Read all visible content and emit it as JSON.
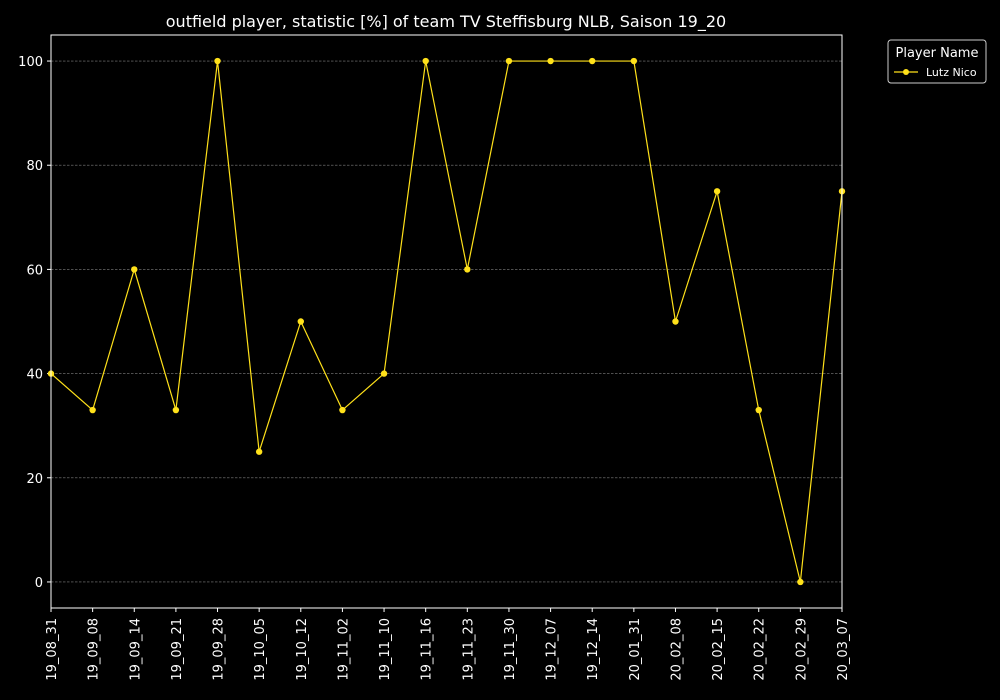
{
  "chart_data": {
    "type": "line",
    "title": "outfield player, statistic [%] of team TV Steffisburg NLB, Saison 19_20",
    "xlabel": "",
    "ylabel": "",
    "categories": [
      "19_08_31",
      "19_09_08",
      "19_09_14",
      "19_09_21",
      "19_09_28",
      "19_10_05",
      "19_10_12",
      "19_11_02",
      "19_11_10",
      "19_11_16",
      "19_11_23",
      "19_11_30",
      "19_12_07",
      "19_12_14",
      "20_01_31",
      "20_02_08",
      "20_02_15",
      "20_02_22",
      "20_02_29",
      "20_03_07"
    ],
    "series": [
      {
        "name": "Lutz Nico",
        "values": [
          40,
          33,
          60,
          33,
          100,
          25,
          50,
          33,
          40,
          100,
          60,
          100,
          100,
          100,
          100,
          50,
          75,
          33,
          0,
          75
        ],
        "color": "#ffe11a"
      }
    ],
    "ylim": [
      -5,
      105
    ],
    "yticks": [
      0,
      20,
      40,
      60,
      80,
      100
    ],
    "grid": true,
    "legend": {
      "title": "Player Name",
      "placement": "upper-right-outside"
    },
    "background": "#000000",
    "foreground": "#ffffff",
    "grid_color": "#808080"
  }
}
